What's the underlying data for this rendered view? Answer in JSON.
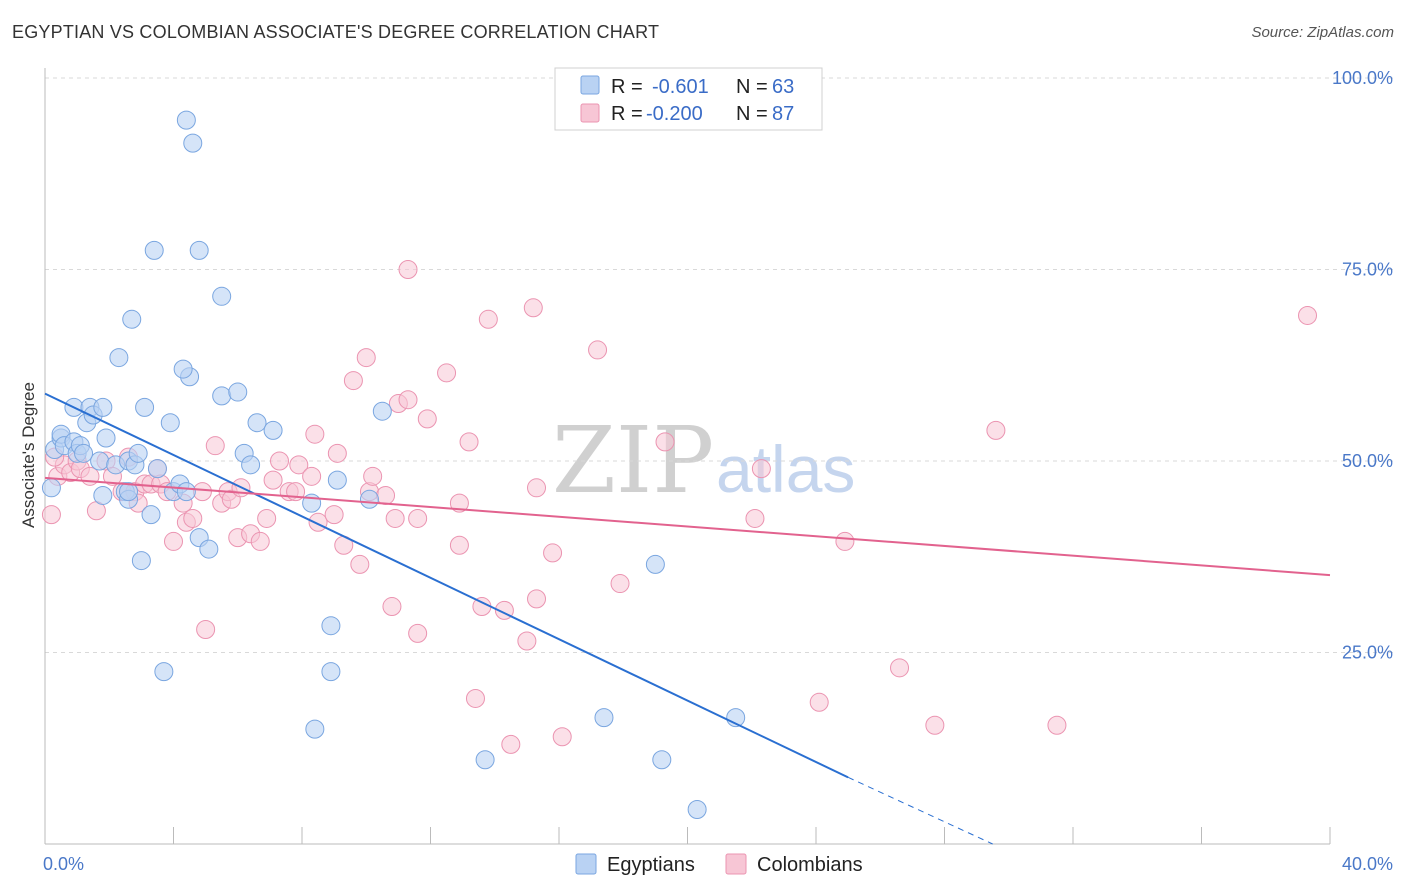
{
  "title": "EGYPTIAN VS COLOMBIAN ASSOCIATE'S DEGREE CORRELATION CHART",
  "source": "Source: ZipAtlas.com",
  "watermark": {
    "zip": "ZIP",
    "atlas": "atlas"
  },
  "colors": {
    "egyptians_fill": "#b9d2f3",
    "egyptians_stroke": "#7aa6e0",
    "egyptians_line": "#2a6fd1",
    "colombians_fill": "#f7c6d5",
    "colombians_stroke": "#eb94b1",
    "colombians_line": "#e2628e",
    "axis_label": "#4a78c8",
    "grid": "#d9d9d9"
  },
  "legend": {
    "rows": [
      {
        "r_label": "R =",
        "r_value": "-0.601",
        "n_label": "N =",
        "n_value": "63"
      },
      {
        "r_label": "R =",
        "r_value": "-0.200",
        "n_label": "N =",
        "n_value": "87"
      }
    ],
    "bottom": [
      "Egyptians",
      "Colombians"
    ]
  },
  "chart_data": {
    "type": "scatter",
    "xlabel": "",
    "ylabel": "Associate's Degree",
    "xlim": [
      0,
      40
    ],
    "ylim": [
      0,
      100
    ],
    "x_tick_labels": [
      "0.0%",
      "40.0%"
    ],
    "y_tick_labels": [
      "100.0%",
      "75.0%",
      "50.0%",
      "25.0%"
    ],
    "y_ticks": [
      100,
      75,
      50,
      25
    ],
    "grid": true,
    "legend_position": "top-center",
    "series": [
      {
        "name": "Egyptians",
        "trend": {
          "x": [
            0,
            25
          ],
          "y": [
            58.8,
            8.7
          ],
          "dashed_to": [
            29.5,
            0
          ]
        },
        "points": [
          [
            0.2,
            46.5
          ],
          [
            0.3,
            51.5
          ],
          [
            0.5,
            53
          ],
          [
            0.5,
            53.5
          ],
          [
            0.6,
            52
          ],
          [
            0.9,
            52.5
          ],
          [
            1.0,
            51
          ],
          [
            1.1,
            52
          ],
          [
            0.9,
            57
          ],
          [
            1.4,
            57
          ],
          [
            1.3,
            55
          ],
          [
            1.5,
            56
          ],
          [
            1.8,
            57
          ],
          [
            1.7,
            50
          ],
          [
            1.9,
            53
          ],
          [
            2.2,
            49.5
          ],
          [
            2.5,
            46
          ],
          [
            2.6,
            45
          ],
          [
            2.6,
            46
          ],
          [
            2.6,
            50
          ],
          [
            2.8,
            49.5
          ],
          [
            2.9,
            51
          ],
          [
            3.0,
            37
          ],
          [
            3.1,
            57
          ],
          [
            3.3,
            43
          ],
          [
            3.5,
            49
          ],
          [
            3.9,
            55
          ],
          [
            4.0,
            46
          ],
          [
            4.2,
            47
          ],
          [
            4.4,
            46
          ],
          [
            4.5,
            61
          ],
          [
            4.8,
            40
          ],
          [
            5.1,
            38.5
          ],
          [
            4.3,
            62
          ],
          [
            2.3,
            63.5
          ],
          [
            2.7,
            68.5
          ],
          [
            3.4,
            77.5
          ],
          [
            4.8,
            77.5
          ],
          [
            5.5,
            71.5
          ],
          [
            5.5,
            58.5
          ],
          [
            6.0,
            59
          ],
          [
            6.2,
            51
          ],
          [
            6.4,
            49.5
          ],
          [
            6.6,
            55
          ],
          [
            7.1,
            54
          ],
          [
            8.3,
            44.5
          ],
          [
            9.1,
            47.5
          ],
          [
            10.1,
            45
          ],
          [
            10.5,
            56.5
          ],
          [
            3.7,
            22.5
          ],
          [
            8.9,
            28.5
          ],
          [
            8.9,
            22.5
          ],
          [
            8.4,
            15
          ],
          [
            13.7,
            11
          ],
          [
            17.4,
            16.5
          ],
          [
            19.0,
            36.5
          ],
          [
            19.2,
            11
          ],
          [
            21.5,
            16.5
          ],
          [
            20.3,
            4.5
          ],
          [
            4.4,
            94.5
          ],
          [
            4.6,
            91.5
          ],
          [
            1.8,
            45.5
          ],
          [
            1.2,
            51
          ]
        ]
      },
      {
        "name": "Colombians",
        "trend": {
          "x": [
            0,
            40
          ],
          "y": [
            47.8,
            35.1
          ]
        },
        "points": [
          [
            0.2,
            43
          ],
          [
            0.4,
            48
          ],
          [
            0.6,
            49.5
          ],
          [
            0.8,
            48.5
          ],
          [
            1.0,
            50
          ],
          [
            1.1,
            49
          ],
          [
            1.4,
            48
          ],
          [
            1.6,
            43.5
          ],
          [
            1.9,
            50
          ],
          [
            2.1,
            48
          ],
          [
            2.4,
            46
          ],
          [
            2.6,
            50.5
          ],
          [
            2.8,
            46
          ],
          [
            2.9,
            44.5
          ],
          [
            3.1,
            47
          ],
          [
            3.3,
            47
          ],
          [
            3.5,
            49
          ],
          [
            3.6,
            47
          ],
          [
            3.8,
            46
          ],
          [
            4.0,
            39.5
          ],
          [
            4.3,
            44.5
          ],
          [
            4.4,
            42
          ],
          [
            4.6,
            42.5
          ],
          [
            4.9,
            46
          ],
          [
            5.0,
            28
          ],
          [
            5.3,
            52
          ],
          [
            5.5,
            44.5
          ],
          [
            5.7,
            46
          ],
          [
            5.8,
            45
          ],
          [
            6.0,
            40
          ],
          [
            6.1,
            46.5
          ],
          [
            6.4,
            40.5
          ],
          [
            6.7,
            39.5
          ],
          [
            6.9,
            42.5
          ],
          [
            7.1,
            47.5
          ],
          [
            7.3,
            50
          ],
          [
            7.6,
            46
          ],
          [
            7.8,
            46
          ],
          [
            7.9,
            49.5
          ],
          [
            8.3,
            48
          ],
          [
            8.4,
            53.5
          ],
          [
            8.5,
            42
          ],
          [
            9.0,
            43
          ],
          [
            9.1,
            51
          ],
          [
            9.3,
            39
          ],
          [
            9.6,
            60.5
          ],
          [
            9.8,
            36.5
          ],
          [
            10.0,
            63.5
          ],
          [
            10.1,
            46
          ],
          [
            10.2,
            48
          ],
          [
            10.6,
            45.5
          ],
          [
            10.8,
            31
          ],
          [
            10.9,
            42.5
          ],
          [
            11.0,
            57.5
          ],
          [
            11.3,
            58
          ],
          [
            11.6,
            27.5
          ],
          [
            11.6,
            42.5
          ],
          [
            11.9,
            55.5
          ],
          [
            11.3,
            75
          ],
          [
            12.5,
            61.5
          ],
          [
            12.9,
            44.5
          ],
          [
            12.9,
            39
          ],
          [
            13.2,
            52.5
          ],
          [
            13.8,
            68.5
          ],
          [
            13.4,
            19
          ],
          [
            13.6,
            31
          ],
          [
            14.3,
            30.5
          ],
          [
            14.5,
            13
          ],
          [
            15.0,
            26.5
          ],
          [
            15.3,
            46.5
          ],
          [
            15.3,
            32
          ],
          [
            15.2,
            70
          ],
          [
            15.8,
            38
          ],
          [
            16.1,
            14
          ],
          [
            17.2,
            64.5
          ],
          [
            17.9,
            34
          ],
          [
            19.3,
            52.5
          ],
          [
            22.1,
            42.5
          ],
          [
            22.3,
            49
          ],
          [
            24.1,
            18.5
          ],
          [
            24.9,
            39.5
          ],
          [
            26.6,
            23
          ],
          [
            27.7,
            15.5
          ],
          [
            29.6,
            54
          ],
          [
            31.5,
            15.5
          ],
          [
            39.3,
            69
          ],
          [
            0.3,
            50.5
          ]
        ]
      }
    ]
  }
}
